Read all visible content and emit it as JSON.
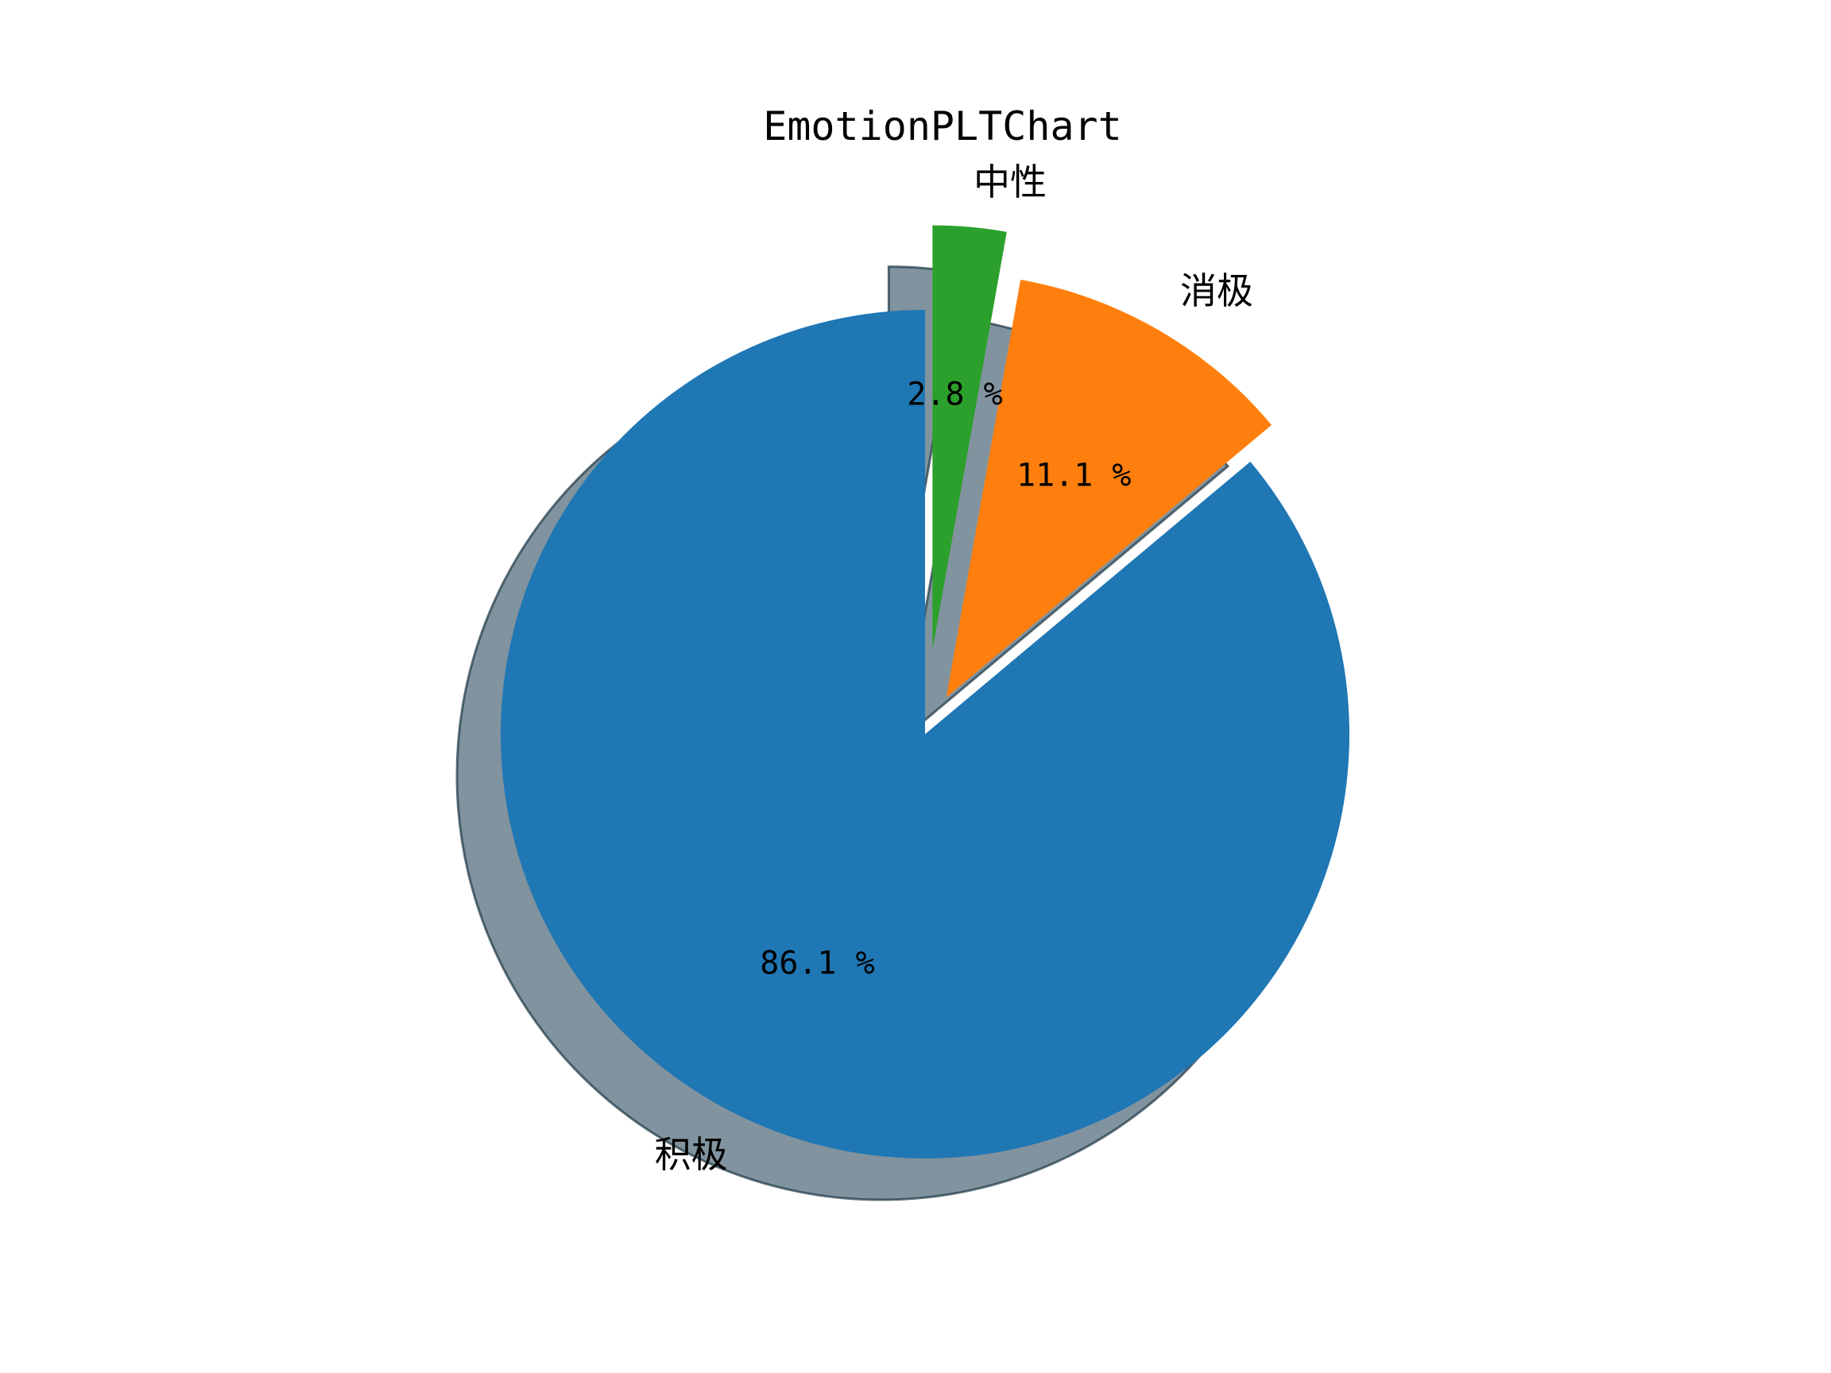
{
  "chart_data": {
    "type": "pie",
    "title": "EmotionPLTChart",
    "categories": [
      "积极",
      "消极",
      "中性"
    ],
    "values": [
      86.1,
      11.1,
      2.8
    ],
    "value_labels": [
      "86.1 %",
      "11.1 %",
      "2.8 %"
    ],
    "colors": [
      "#1f77b4",
      "#ff7f0e",
      "#2ca02c"
    ],
    "explode": [
      0,
      0.1,
      0.2
    ],
    "start_angle_deg": 90,
    "direction": "counterclockwise",
    "shadow": true,
    "legend": "none"
  }
}
